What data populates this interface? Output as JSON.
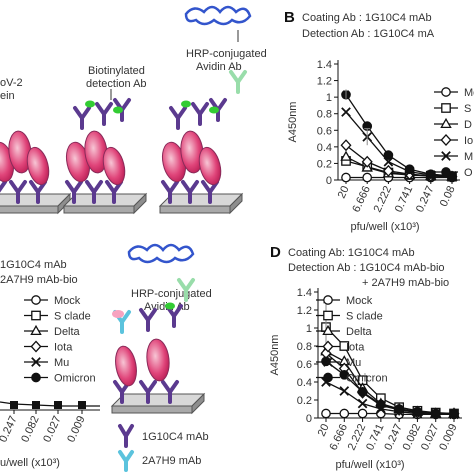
{
  "schematic": {
    "top_labels": {
      "partial_antigen": "oV-2",
      "partial_antigen_2": "ein",
      "biotinylated_line1": "Biotinylated",
      "biotinylated_line2": "detection Ab",
      "hrp_line1": "HRP-conjugated",
      "hrp_line2": "Avidin Ab"
    },
    "bottom_labels": {
      "hrp_line1": "HRP-conjugated",
      "hrp_line2": "Avidin Ab"
    },
    "legend_items": [
      {
        "label": "1G10C4 mAb",
        "color": "#5b3a8f"
      },
      {
        "label": "2A7H9 mAb",
        "color": "#5bc3dd"
      }
    ],
    "colors": {
      "antibody": "#5b3a8f",
      "antibody2": "#5bc3dd",
      "biotin": "#33cc33",
      "hrp": "#3355cc",
      "avidin": "#99ddaa",
      "plate": "#c8c8c8"
    }
  },
  "panel_c_partial": {
    "header_line1": "1G10C4 mAb",
    "header_line2": "2A7H9 mAb-bio",
    "tick_labels": [
      "0.247",
      "0.082",
      "0.027",
      "0.009"
    ],
    "xlabel": "u/well (x10³)"
  },
  "chart_data": [
    {
      "type": "line",
      "panel": "B",
      "header_line1": "Coating Ab : 1G10C4 mAb",
      "header_line2": "Detection Ab : 1G10C4 mA",
      "ylabel": "A450nm",
      "xlabel": "pfu/well (x10³)",
      "categories": [
        "20",
        "6.666",
        "2.222",
        "0.741",
        "0.247",
        "0.08"
      ],
      "ylim": [
        0,
        1.4
      ],
      "yticks": [
        "0",
        "0.2",
        "0.4",
        "0.6",
        "0.8",
        "1",
        "1.2",
        "1.4"
      ],
      "legend": [
        "Mo",
        "S",
        "D",
        "Io",
        "M",
        "O"
      ],
      "series": [
        {
          "name": "Mock",
          "marker": "circle-open",
          "values": [
            0.03,
            0.03,
            0.03,
            0.03,
            0.03,
            0.03
          ]
        },
        {
          "name": "S clade",
          "marker": "square-open",
          "values": [
            0.23,
            0.16,
            0.09,
            0.06,
            0.05,
            0.04
          ]
        },
        {
          "name": "Delta",
          "marker": "triangle-open",
          "values": [
            0.28,
            0.15,
            0.08,
            0.06,
            0.05,
            0.04
          ]
        },
        {
          "name": "Iota",
          "marker": "diamond-open",
          "values": [
            0.42,
            0.22,
            0.11,
            0.07,
            0.05,
            0.04
          ]
        },
        {
          "name": "Mu",
          "marker": "cross",
          "values": [
            0.82,
            0.52,
            0.22,
            0.1,
            0.06,
            0.05
          ]
        },
        {
          "name": "Omicron",
          "marker": "circle-filled",
          "values": [
            1.03,
            0.65,
            0.3,
            0.13,
            0.07,
            0.05
          ]
        }
      ]
    },
    {
      "type": "line",
      "panel": "D",
      "header_line1": "Coating Ab: 1G10C4 mAb",
      "header_line2": "Detection Ab : 1G10C4 mAb-bio",
      "header_line3": "+ 2A7H9 mAb-bio",
      "ylabel": "A450nm",
      "xlabel": "pfu/well (x10³)",
      "categories": [
        "20",
        "6.666",
        "2.222",
        "0.741",
        "0.247",
        "0.082",
        "0.027",
        "0.009"
      ],
      "ylim": [
        0,
        1.4
      ],
      "yticks": [
        "0",
        "0.2",
        "0.4",
        "0.6",
        "0.8",
        "1",
        "1.2",
        "1.4"
      ],
      "legend": [
        "Mock",
        "S clade",
        "Delta",
        "Iota",
        "Mu",
        "Omicron"
      ],
      "series": [
        {
          "name": "Mock",
          "marker": "circle-open",
          "values": [
            0.05,
            0.05,
            0.05,
            0.05,
            0.04,
            0.04,
            0.04,
            0.04
          ]
        },
        {
          "name": "S clade",
          "marker": "square-open",
          "values": [
            1.01,
            0.8,
            0.42,
            0.22,
            0.12,
            0.08,
            0.06,
            0.05
          ]
        },
        {
          "name": "Delta",
          "marker": "triangle-open",
          "values": [
            0.74,
            0.63,
            0.33,
            0.16,
            0.1,
            0.07,
            0.05,
            0.05
          ]
        },
        {
          "name": "Iota",
          "marker": "diamond-open",
          "values": [
            0.72,
            0.55,
            0.28,
            0.14,
            0.09,
            0.06,
            0.05,
            0.05
          ]
        },
        {
          "name": "Mu",
          "marker": "cross",
          "values": [
            0.4,
            0.3,
            0.16,
            0.1,
            0.07,
            0.05,
            0.05,
            0.04
          ]
        },
        {
          "name": "Omicron",
          "marker": "circle-filled",
          "values": [
            0.63,
            0.48,
            0.29,
            0.15,
            0.1,
            0.07,
            0.05,
            0.05
          ]
        }
      ]
    }
  ],
  "panel_labels": {
    "b": "B",
    "d": "D"
  }
}
